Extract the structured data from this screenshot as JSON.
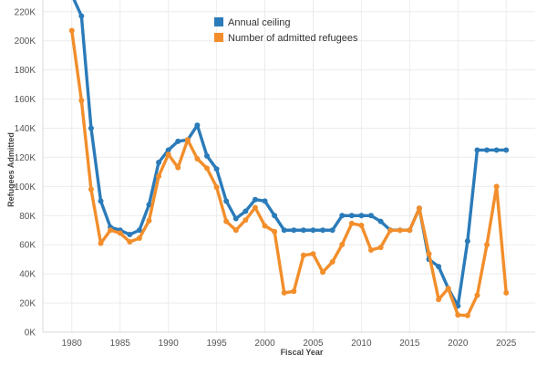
{
  "chart_data": {
    "type": "line",
    "xlabel": "Fiscal Year",
    "ylabel": "Refugees Admitted",
    "xlim": [
      1977,
      2028
    ],
    "ylim": [
      0,
      228000
    ],
    "x_ticks": [
      1980,
      1985,
      1990,
      1995,
      2000,
      2005,
      2010,
      2015,
      2020,
      2025
    ],
    "y_ticks": [
      0,
      20000,
      40000,
      60000,
      80000,
      100000,
      120000,
      140000,
      160000,
      180000,
      200000,
      220000
    ],
    "y_tick_labels": [
      "0K",
      "20K",
      "40K",
      "60K",
      "80K",
      "100K",
      "120K",
      "140K",
      "160K",
      "180K",
      "200K",
      "220K"
    ],
    "grid": true,
    "legend_position": "top-center",
    "series": [
      {
        "name": "Annual ceiling",
        "color": "#2b7bb9",
        "points": [
          [
            1980,
            231700
          ],
          [
            1981,
            217000
          ],
          [
            1982,
            140000
          ],
          [
            1983,
            90000
          ],
          [
            1984,
            72000
          ],
          [
            1985,
            70000
          ],
          [
            1986,
            67000
          ],
          [
            1987,
            70000
          ],
          [
            1988,
            87500
          ],
          [
            1989,
            116500
          ],
          [
            1990,
            125000
          ],
          [
            1991,
            131000
          ],
          [
            1992,
            132000
          ],
          [
            1993,
            142000
          ],
          [
            1994,
            121000
          ],
          [
            1995,
            112000
          ],
          [
            1996,
            90000
          ],
          [
            1997,
            78000
          ],
          [
            1998,
            83000
          ],
          [
            1999,
            91000
          ],
          [
            2000,
            90000
          ],
          [
            2001,
            80000
          ],
          [
            2002,
            70000
          ],
          [
            2003,
            70000
          ],
          [
            2004,
            70000
          ],
          [
            2005,
            70000
          ],
          [
            2006,
            70000
          ],
          [
            2007,
            70000
          ],
          [
            2008,
            80000
          ],
          [
            2009,
            80000
          ],
          [
            2010,
            80000
          ],
          [
            2011,
            80000
          ],
          [
            2012,
            76000
          ],
          [
            2013,
            70000
          ],
          [
            2014,
            70000
          ],
          [
            2015,
            70000
          ],
          [
            2016,
            85000
          ],
          [
            2017,
            50000
          ],
          [
            2018,
            45000
          ],
          [
            2019,
            30000
          ],
          [
            2020,
            18000
          ],
          [
            2021,
            62500
          ],
          [
            2022,
            125000
          ],
          [
            2023,
            125000
          ],
          [
            2024,
            125000
          ],
          [
            2025,
            125000
          ]
        ]
      },
      {
        "name": "Number of admitted refugees",
        "color": "#f28e2b",
        "points": [
          [
            1980,
            207000
          ],
          [
            1981,
            159000
          ],
          [
            1982,
            98000
          ],
          [
            1983,
            61000
          ],
          [
            1984,
            70000
          ],
          [
            1985,
            68000
          ],
          [
            1986,
            62000
          ],
          [
            1987,
            64500
          ],
          [
            1988,
            76500
          ],
          [
            1989,
            107000
          ],
          [
            1990,
            122000
          ],
          [
            1991,
            113000
          ],
          [
            1992,
            132000
          ],
          [
            1993,
            119000
          ],
          [
            1994,
            112500
          ],
          [
            1995,
            99500
          ],
          [
            1996,
            76000
          ],
          [
            1997,
            70000
          ],
          [
            1998,
            77000
          ],
          [
            1999,
            85500
          ],
          [
            2000,
            73000
          ],
          [
            2001,
            69000
          ],
          [
            2002,
            27000
          ],
          [
            2003,
            28000
          ],
          [
            2004,
            52800
          ],
          [
            2005,
            53700
          ],
          [
            2006,
            41200
          ],
          [
            2007,
            48200
          ],
          [
            2008,
            60100
          ],
          [
            2009,
            74600
          ],
          [
            2010,
            73300
          ],
          [
            2011,
            56400
          ],
          [
            2012,
            58200
          ],
          [
            2013,
            69900
          ],
          [
            2014,
            69900
          ],
          [
            2015,
            70000
          ],
          [
            2016,
            85000
          ],
          [
            2017,
            53700
          ],
          [
            2018,
            22500
          ],
          [
            2019,
            30000
          ],
          [
            2020,
            11800
          ],
          [
            2021,
            11400
          ],
          [
            2022,
            25400
          ],
          [
            2023,
            60000
          ],
          [
            2024,
            100000
          ],
          [
            2025,
            27000
          ]
        ]
      }
    ]
  }
}
